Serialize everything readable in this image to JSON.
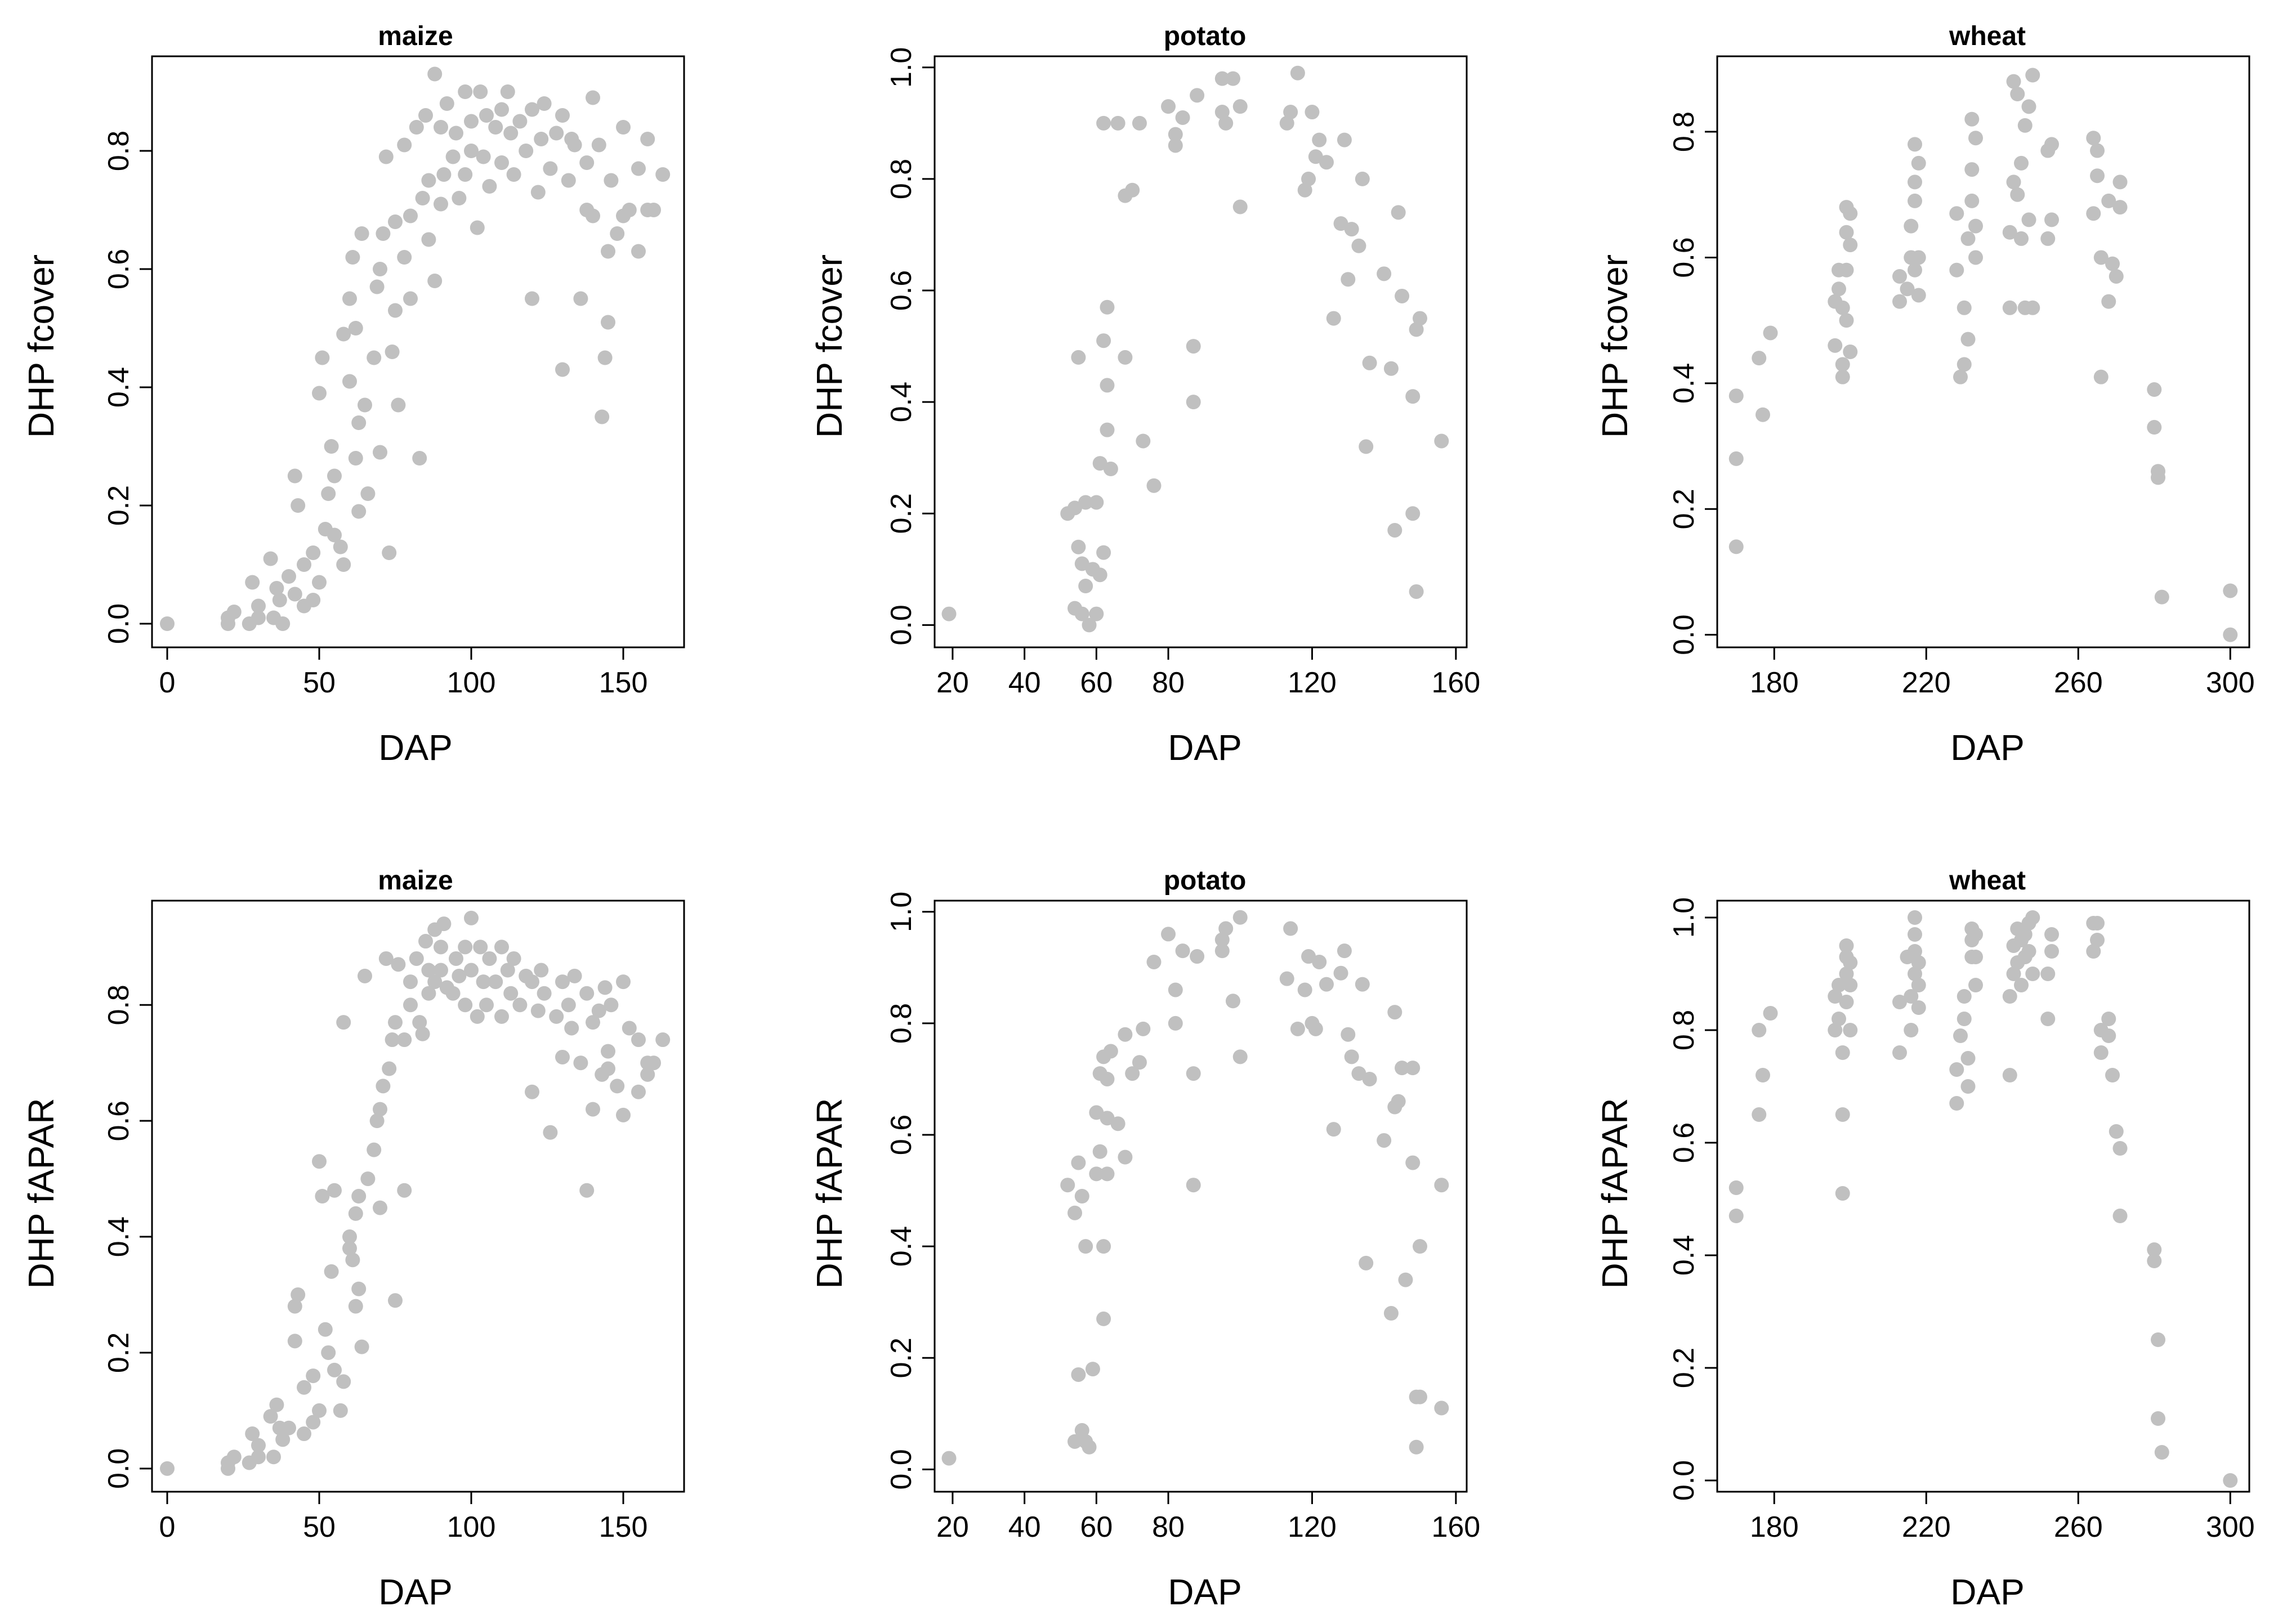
{
  "figure": {
    "point_color": "#c0c0c0",
    "axis_color": "#000000"
  },
  "chart_data": [
    {
      "type": "scatter",
      "title": "maize",
      "xlabel": "DAP",
      "ylabel": "DHP fcover",
      "xlim": [
        -5,
        170
      ],
      "ylim": [
        -0.04,
        0.96
      ],
      "xticks": [
        0,
        50,
        100,
        150
      ],
      "yticks": [
        0.0,
        0.2,
        0.4,
        0.6,
        0.8
      ],
      "ytick_labels": [
        "0.0",
        "0.2",
        "0.4",
        "0.6",
        "0.8"
      ],
      "x": [
        0,
        20,
        20,
        22,
        27,
        28,
        30,
        30,
        34,
        35,
        36,
        37,
        38,
        40,
        42,
        42,
        43,
        45,
        45,
        48,
        48,
        50,
        50,
        51,
        52,
        53,
        54,
        55,
        55,
        57,
        58,
        58,
        60,
        60,
        61,
        62,
        62,
        63,
        63,
        64,
        65,
        66,
        68,
        69,
        70,
        70,
        71,
        72,
        73,
        74,
        75,
        75,
        76,
        78,
        78,
        80,
        80,
        82,
        83,
        84,
        85,
        86,
        86,
        88,
        88,
        90,
        90,
        91,
        92,
        94,
        95,
        96,
        98,
        98,
        100,
        100,
        102,
        103,
        104,
        105,
        106,
        108,
        110,
        110,
        112,
        113,
        114,
        116,
        118,
        120,
        120,
        122,
        123,
        124,
        126,
        128,
        130,
        130,
        132,
        133,
        134,
        136,
        138,
        138,
        140,
        140,
        142,
        143,
        144,
        145,
        145,
        146,
        148,
        150,
        150,
        152,
        155,
        155,
        158,
        158,
        160,
        163
      ],
      "y": [
        0.0,
        0.0,
        0.01,
        0.02,
        0.0,
        0.07,
        0.01,
        0.03,
        0.11,
        0.01,
        0.06,
        0.04,
        0.0,
        0.08,
        0.05,
        0.25,
        0.2,
        0.03,
        0.1,
        0.12,
        0.04,
        0.39,
        0.07,
        0.45,
        0.16,
        0.22,
        0.3,
        0.15,
        0.25,
        0.13,
        0.49,
        0.1,
        0.41,
        0.55,
        0.62,
        0.28,
        0.5,
        0.19,
        0.34,
        0.66,
        0.37,
        0.22,
        0.45,
        0.57,
        0.29,
        0.6,
        0.66,
        0.79,
        0.12,
        0.46,
        0.68,
        0.53,
        0.37,
        0.62,
        0.81,
        0.55,
        0.69,
        0.84,
        0.28,
        0.72,
        0.86,
        0.65,
        0.75,
        0.93,
        0.58,
        0.71,
        0.84,
        0.76,
        0.88,
        0.79,
        0.83,
        0.72,
        0.9,
        0.76,
        0.85,
        0.8,
        0.67,
        0.9,
        0.79,
        0.86,
        0.74,
        0.84,
        0.87,
        0.78,
        0.9,
        0.83,
        0.76,
        0.85,
        0.8,
        0.87,
        0.55,
        0.73,
        0.82,
        0.88,
        0.77,
        0.83,
        0.86,
        0.43,
        0.75,
        0.82,
        0.81,
        0.55,
        0.78,
        0.7,
        0.89,
        0.69,
        0.81,
        0.35,
        0.45,
        0.63,
        0.51,
        0.75,
        0.66,
        0.84,
        0.69,
        0.7,
        0.63,
        0.77,
        0.7,
        0.82,
        0.7,
        0.76
      ]
    },
    {
      "type": "scatter",
      "title": "potato",
      "xlabel": "DAP",
      "ylabel": "DHP fcover",
      "xlim": [
        15,
        163
      ],
      "ylim": [
        -0.04,
        1.02
      ],
      "xticks": [
        20,
        40,
        60,
        80,
        120,
        160
      ],
      "yticks": [
        0.0,
        0.2,
        0.4,
        0.6,
        0.8,
        1.0
      ],
      "ytick_labels": [
        "0.0",
        "0.2",
        "0.4",
        "0.6",
        "0.8",
        "1.0"
      ],
      "x": [
        19,
        52,
        54,
        54,
        55,
        55,
        56,
        56,
        57,
        57,
        58,
        59,
        60,
        60,
        61,
        61,
        62,
        62,
        62,
        63,
        63,
        63,
        64,
        66,
        68,
        68,
        70,
        72,
        73,
        76,
        80,
        82,
        82,
        84,
        87,
        87,
        88,
        95,
        95,
        96,
        98,
        100,
        100,
        113,
        114,
        116,
        118,
        119,
        120,
        121,
        122,
        124,
        126,
        128,
        129,
        130,
        131,
        133,
        134,
        135,
        136,
        140,
        142,
        143,
        144,
        145,
        148,
        149,
        150,
        156
      ],
      "y": [
        0.02,
        0.2,
        0.21,
        0.03,
        0.14,
        0.48,
        0.11,
        0.02,
        0.07,
        0.22,
        0.0,
        0.1,
        0.22,
        0.02,
        0.29,
        0.09,
        0.13,
        0.51,
        0.9,
        0.43,
        0.57,
        0.35,
        0.28,
        0.9,
        0.48,
        0.77,
        0.78,
        0.9,
        0.33,
        0.25,
        0.93,
        0.86,
        0.88,
        0.91,
        0.5,
        0.4,
        0.95,
        0.92,
        0.98,
        0.9,
        0.98,
        0.93,
        0.75,
        0.9,
        0.92,
        0.99,
        0.78,
        0.8,
        0.92,
        0.84,
        0.87,
        0.83,
        0.55,
        0.72,
        0.87,
        0.62,
        0.71,
        0.68,
        0.8,
        0.32,
        0.47,
        0.63,
        0.46,
        0.17,
        0.74,
        0.59,
        0.2,
        0.53,
        0.55,
        0.33
      ],
      "x2": [
        148,
        149
      ],
      "y2": [
        0.41,
        0.06
      ]
    },
    {
      "type": "scatter",
      "title": "wheat",
      "xlabel": "DAP",
      "ylabel": "DHP fcover",
      "xlim": [
        165,
        305
      ],
      "ylim": [
        -0.02,
        0.92
      ],
      "xticks": [
        180,
        220,
        260,
        300
      ],
      "yticks": [
        0.0,
        0.2,
        0.4,
        0.6,
        0.8
      ],
      "ytick_labels": [
        "0.0",
        "0.2",
        "0.4",
        "0.6",
        "0.8"
      ],
      "x": [
        170,
        170,
        170,
        176,
        177,
        179,
        196,
        196,
        197,
        197,
        198,
        198,
        198,
        199,
        199,
        199,
        199,
        200,
        200,
        200,
        213,
        213,
        215,
        216,
        216,
        217,
        217,
        217,
        217,
        218,
        218,
        218,
        228,
        228,
        229,
        230,
        230,
        231,
        231,
        232,
        232,
        232,
        233,
        233,
        233,
        242,
        242,
        243,
        243,
        244,
        244,
        245,
        245,
        246,
        246,
        247,
        247,
        248,
        248,
        252,
        252,
        253,
        253,
        264,
        264,
        265,
        265,
        266,
        266,
        268,
        268,
        269,
        270,
        271,
        271,
        280,
        280,
        281,
        281,
        282,
        300,
        300
      ],
      "y": [
        0.38,
        0.28,
        0.14,
        0.44,
        0.35,
        0.48,
        0.46,
        0.53,
        0.55,
        0.58,
        0.41,
        0.43,
        0.52,
        0.5,
        0.58,
        0.64,
        0.68,
        0.45,
        0.62,
        0.67,
        0.53,
        0.57,
        0.55,
        0.6,
        0.65,
        0.58,
        0.69,
        0.72,
        0.78,
        0.54,
        0.6,
        0.75,
        0.58,
        0.67,
        0.41,
        0.43,
        0.52,
        0.47,
        0.63,
        0.69,
        0.74,
        0.82,
        0.6,
        0.65,
        0.79,
        0.52,
        0.64,
        0.72,
        0.88,
        0.7,
        0.86,
        0.63,
        0.75,
        0.52,
        0.81,
        0.66,
        0.84,
        0.52,
        0.89,
        0.63,
        0.77,
        0.66,
        0.78,
        0.67,
        0.79,
        0.73,
        0.77,
        0.6,
        0.41,
        0.53,
        0.69,
        0.59,
        0.57,
        0.68,
        0.72,
        0.39,
        0.33,
        0.26,
        0.25,
        0.06,
        0.07,
        0.0
      ]
    },
    {
      "type": "scatter",
      "title": "maize",
      "xlabel": "DAP",
      "ylabel": "DHP fAPAR",
      "xlim": [
        -5,
        170
      ],
      "ylim": [
        -0.04,
        0.98
      ],
      "xticks": [
        0,
        50,
        100,
        150
      ],
      "yticks": [
        0.0,
        0.2,
        0.4,
        0.6,
        0.8
      ],
      "ytick_labels": [
        "0.0",
        "0.2",
        "0.4",
        "0.6",
        "0.8"
      ],
      "x": [
        0,
        20,
        20,
        22,
        27,
        28,
        30,
        30,
        34,
        35,
        36,
        37,
        38,
        40,
        42,
        42,
        43,
        45,
        45,
        48,
        48,
        50,
        50,
        51,
        52,
        53,
        54,
        55,
        55,
        57,
        58,
        58,
        60,
        60,
        61,
        62,
        62,
        63,
        63,
        64,
        65,
        66,
        68,
        69,
        70,
        70,
        71,
        72,
        73,
        74,
        75,
        75,
        76,
        78,
        78,
        80,
        80,
        82,
        83,
        84,
        85,
        86,
        86,
        88,
        88,
        90,
        90,
        91,
        92,
        94,
        95,
        96,
        98,
        98,
        100,
        100,
        102,
        103,
        104,
        105,
        106,
        108,
        110,
        110,
        112,
        113,
        114,
        116,
        118,
        120,
        120,
        122,
        123,
        124,
        126,
        128,
        130,
        130,
        132,
        133,
        134,
        136,
        138,
        138,
        140,
        140,
        142,
        143,
        144,
        145,
        145,
        146,
        148,
        150,
        150,
        152,
        155,
        155,
        158,
        158,
        160,
        163
      ],
      "y": [
        0.0,
        0.0,
        0.01,
        0.02,
        0.01,
        0.06,
        0.02,
        0.04,
        0.09,
        0.02,
        0.11,
        0.07,
        0.05,
        0.07,
        0.22,
        0.28,
        0.3,
        0.06,
        0.14,
        0.16,
        0.08,
        0.53,
        0.1,
        0.47,
        0.24,
        0.2,
        0.34,
        0.17,
        0.48,
        0.1,
        0.77,
        0.15,
        0.4,
        0.38,
        0.36,
        0.28,
        0.44,
        0.31,
        0.47,
        0.21,
        0.85,
        0.5,
        0.55,
        0.6,
        0.62,
        0.45,
        0.66,
        0.88,
        0.69,
        0.74,
        0.29,
        0.77,
        0.87,
        0.74,
        0.48,
        0.84,
        0.8,
        0.88,
        0.77,
        0.75,
        0.91,
        0.82,
        0.86,
        0.93,
        0.84,
        0.9,
        0.86,
        0.94,
        0.83,
        0.82,
        0.88,
        0.85,
        0.8,
        0.9,
        0.95,
        0.86,
        0.78,
        0.9,
        0.84,
        0.8,
        0.88,
        0.84,
        0.9,
        0.78,
        0.86,
        0.82,
        0.88,
        0.8,
        0.85,
        0.65,
        0.84,
        0.79,
        0.86,
        0.82,
        0.58,
        0.78,
        0.84,
        0.71,
        0.8,
        0.76,
        0.85,
        0.7,
        0.82,
        0.48,
        0.77,
        0.62,
        0.79,
        0.68,
        0.83,
        0.72,
        0.69,
        0.8,
        0.66,
        0.84,
        0.61,
        0.76,
        0.74,
        0.65,
        0.7,
        0.68,
        0.7,
        0.74
      ]
    },
    {
      "type": "scatter",
      "title": "potato",
      "xlabel": "DAP",
      "ylabel": "DHP fAPAR",
      "xlim": [
        15,
        163
      ],
      "ylim": [
        -0.04,
        1.02
      ],
      "xticks": [
        20,
        40,
        60,
        80,
        120,
        160
      ],
      "yticks": [
        0.0,
        0.2,
        0.4,
        0.6,
        0.8,
        1.0
      ],
      "ytick_labels": [
        "0.0",
        "0.2",
        "0.4",
        "0.6",
        "0.8",
        "1.0"
      ],
      "x": [
        19,
        52,
        54,
        54,
        55,
        55,
        56,
        56,
        57,
        57,
        58,
        59,
        60,
        60,
        61,
        61,
        62,
        62,
        62,
        63,
        63,
        63,
        64,
        66,
        68,
        68,
        70,
        72,
        73,
        76,
        80,
        82,
        82,
        84,
        87,
        87,
        88,
        95,
        95,
        96,
        98,
        100,
        100,
        113,
        114,
        116,
        118,
        119,
        120,
        121,
        122,
        124,
        126,
        128,
        129,
        130,
        131,
        133,
        134,
        135,
        136,
        140,
        142,
        143,
        144,
        145,
        148,
        149,
        150,
        156
      ],
      "y": [
        0.02,
        0.51,
        0.46,
        0.05,
        0.55,
        0.17,
        0.49,
        0.07,
        0.05,
        0.4,
        0.04,
        0.18,
        0.53,
        0.64,
        0.57,
        0.71,
        0.74,
        0.27,
        0.4,
        0.63,
        0.7,
        0.53,
        0.75,
        0.62,
        0.78,
        0.56,
        0.71,
        0.73,
        0.79,
        0.91,
        0.96,
        0.8,
        0.86,
        0.93,
        0.71,
        0.51,
        0.92,
        0.95,
        0.93,
        0.97,
        0.84,
        0.99,
        0.74,
        0.88,
        0.97,
        0.79,
        0.86,
        0.92,
        0.8,
        0.79,
        0.91,
        0.87,
        0.61,
        0.89,
        0.93,
        0.78,
        0.74,
        0.71,
        0.87,
        0.37,
        0.7,
        0.59,
        0.28,
        0.65,
        0.66,
        0.72,
        0.55,
        0.13,
        0.4,
        0.51
      ],
      "x2": [
        143,
        146,
        148,
        149,
        150,
        156
      ],
      "y2": [
        0.82,
        0.34,
        0.72,
        0.04,
        0.13,
        0.11
      ]
    },
    {
      "type": "scatter",
      "title": "wheat",
      "xlabel": "DAP",
      "ylabel": "DHP fAPAR",
      "xlim": [
        165,
        305
      ],
      "ylim": [
        -0.02,
        1.03
      ],
      "xticks": [
        180,
        220,
        260,
        300
      ],
      "yticks": [
        0.0,
        0.2,
        0.4,
        0.6,
        0.8,
        1.0
      ],
      "ytick_labels": [
        "0.0",
        "0.2",
        "0.4",
        "0.6",
        "0.8",
        "1.0"
      ],
      "x": [
        170,
        170,
        176,
        176,
        177,
        179,
        196,
        196,
        197,
        197,
        198,
        198,
        198,
        199,
        199,
        199,
        199,
        200,
        200,
        200,
        213,
        213,
        215,
        216,
        216,
        217,
        217,
        217,
        217,
        218,
        218,
        218,
        228,
        228,
        229,
        230,
        230,
        231,
        231,
        232,
        232,
        232,
        233,
        233,
        233,
        242,
        242,
        243,
        243,
        244,
        244,
        245,
        245,
        246,
        246,
        247,
        247,
        248,
        248,
        252,
        252,
        253,
        253,
        264,
        264,
        265,
        265,
        266,
        266,
        268,
        268,
        269,
        270,
        271,
        271,
        280,
        280,
        281,
        281,
        282,
        300
      ],
      "y": [
        0.52,
        0.47,
        0.8,
        0.65,
        0.72,
        0.83,
        0.8,
        0.86,
        0.82,
        0.88,
        0.51,
        0.65,
        0.76,
        0.85,
        0.9,
        0.93,
        0.95,
        0.8,
        0.88,
        0.92,
        0.76,
        0.85,
        0.93,
        0.8,
        0.86,
        0.9,
        0.94,
        0.97,
        1.0,
        0.84,
        0.88,
        0.92,
        0.67,
        0.73,
        0.79,
        0.82,
        0.86,
        0.7,
        0.75,
        0.93,
        0.96,
        0.98,
        0.88,
        0.93,
        0.97,
        0.72,
        0.86,
        0.9,
        0.95,
        0.92,
        0.98,
        0.88,
        0.96,
        0.93,
        0.97,
        0.94,
        0.99,
        0.9,
        1.0,
        0.82,
        0.9,
        0.94,
        0.97,
        0.94,
        0.99,
        0.96,
        0.99,
        0.8,
        0.76,
        0.82,
        0.79,
        0.72,
        0.62,
        0.59,
        0.47,
        0.41,
        0.39,
        0.25,
        0.11,
        0.05,
        0.0
      ]
    }
  ]
}
